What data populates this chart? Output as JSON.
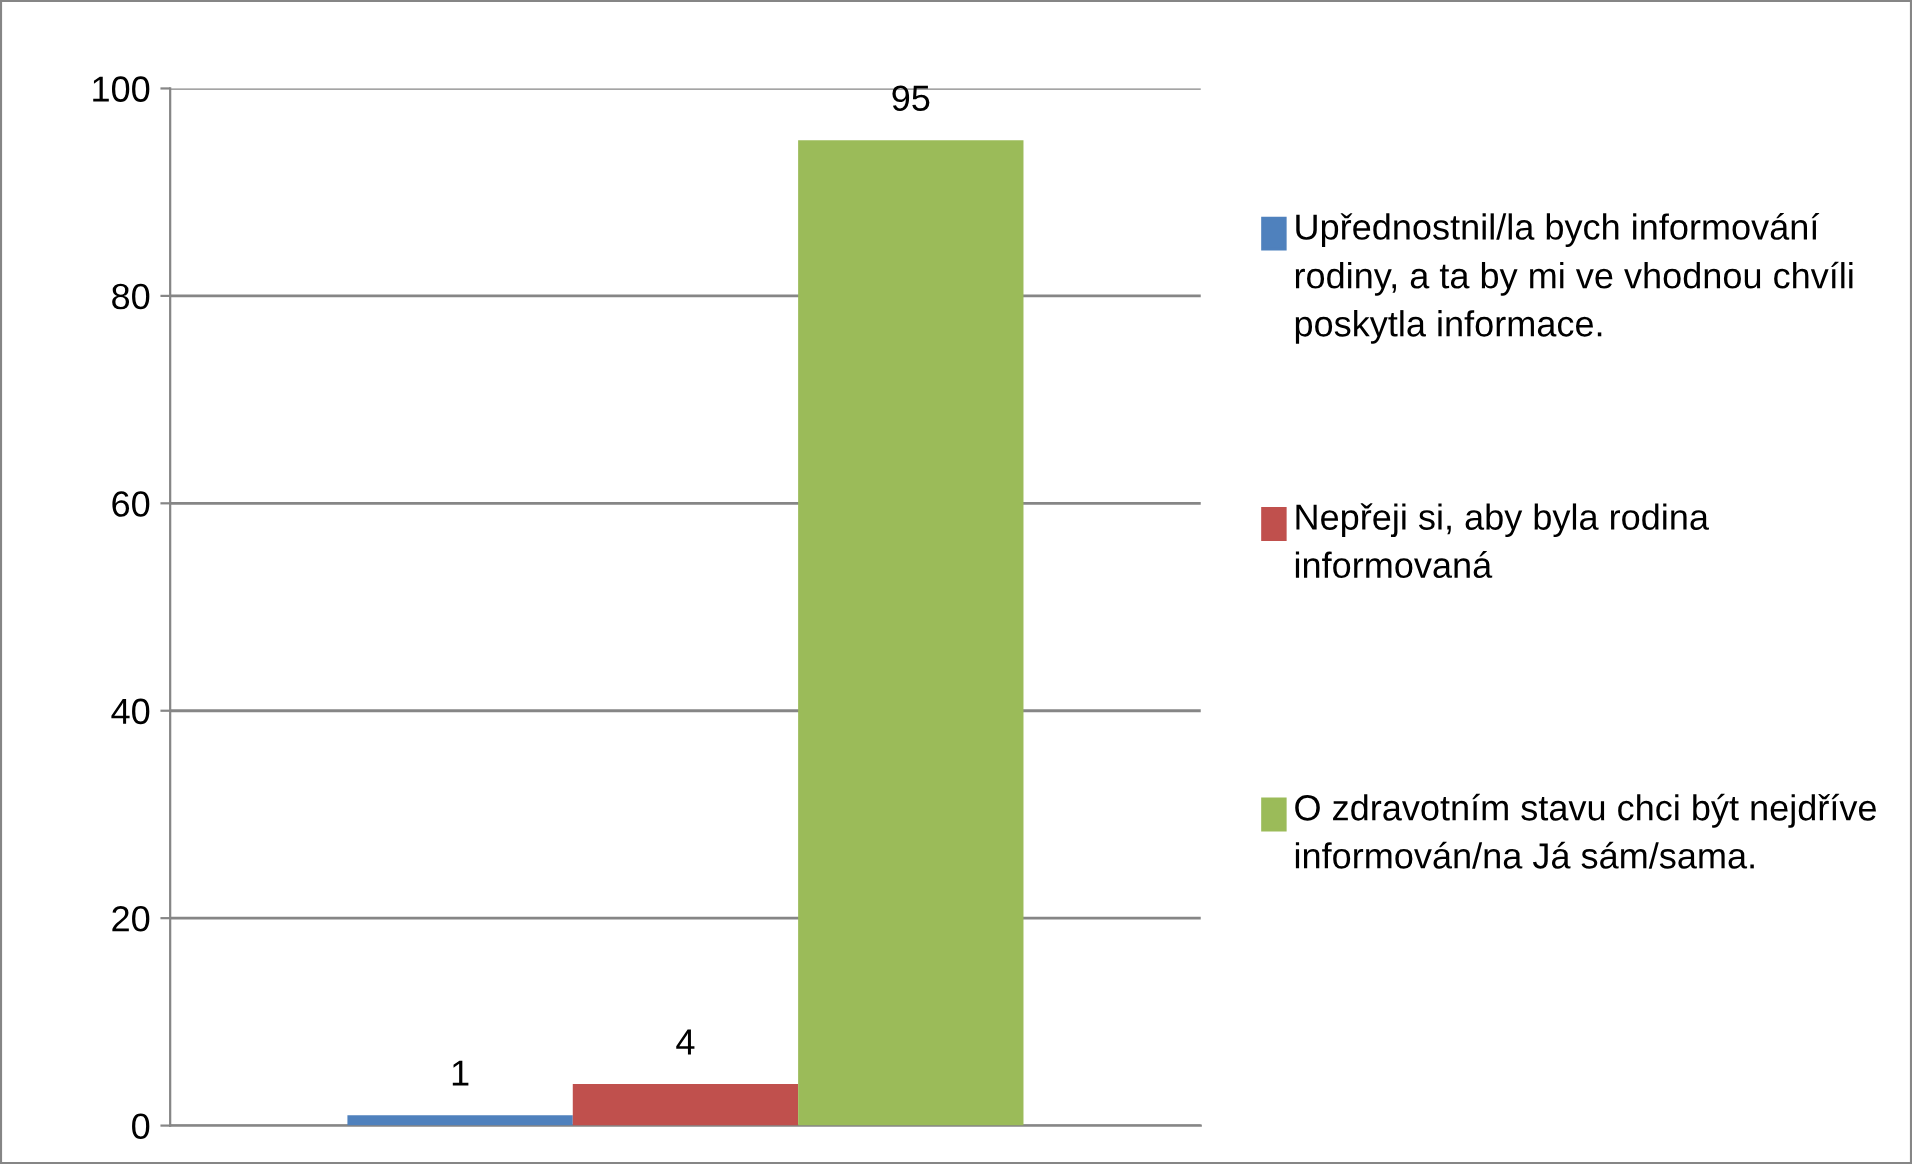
{
  "chart_data": {
    "type": "bar",
    "categories": [
      null
    ],
    "series": [
      {
        "name": "Upřednostnil/la bych informování rodiny, a ta by mi ve vhodnou chvíli poskytla informace.",
        "color": "#4f81bd",
        "values": [
          1
        ]
      },
      {
        "name": "Nepřeji si, aby byla rodina informovaná",
        "color": "#c0504d",
        "values": [
          4
        ]
      },
      {
        "name": "O zdravotním stavu chci být nejdříve informován/na Já sám/sama.",
        "color": "#9bbb59",
        "values": [
          95
        ]
      }
    ],
    "ylim": [
      0,
      100
    ],
    "yticks": [
      0,
      20,
      40,
      60,
      80,
      100
    ],
    "grid": "y",
    "legend": "right",
    "data_labels": true
  }
}
